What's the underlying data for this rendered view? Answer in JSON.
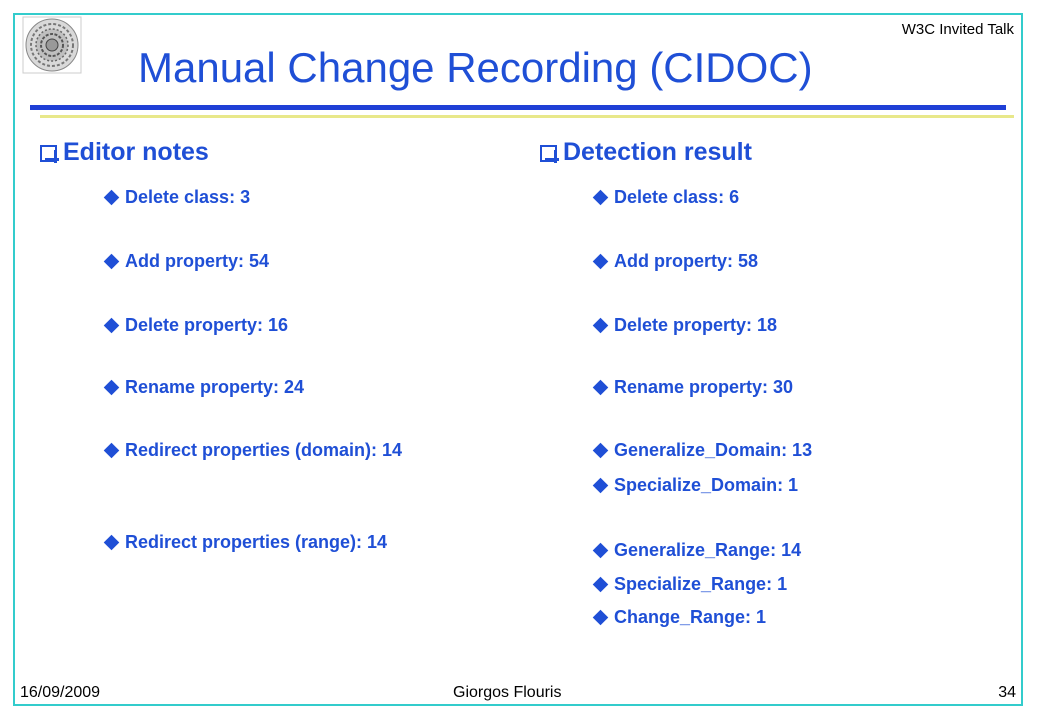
{
  "header": {
    "top_label": "W3C Invited Talk",
    "title": "Manual Change Recording (CIDOC)"
  },
  "left": {
    "heading": "Editor notes",
    "items": [
      {
        "label": "Delete class: 3"
      },
      {
        "label": "Add property: 54"
      },
      {
        "label": "Delete property: 16"
      },
      {
        "label": "Rename property: 24"
      },
      {
        "label": "Redirect properties (domain): 14"
      },
      {
        "label": "Redirect properties (range): 14"
      }
    ]
  },
  "right": {
    "heading": "Detection result",
    "items": [
      {
        "label": "Delete class: 6"
      },
      {
        "label": "Add property: 58"
      },
      {
        "label": "Delete property: 18"
      },
      {
        "label": "Rename property: 30"
      },
      {
        "label": "Generalize_Domain: 13"
      },
      {
        "label": "Specialize_Domain: 1"
      },
      {
        "label": "Generalize_Range: 14"
      },
      {
        "label": "Specialize_Range: 1"
      },
      {
        "label": "Change_Range: 1"
      }
    ]
  },
  "footer": {
    "date": "16/09/2009",
    "author": "Giorgos Flouris",
    "page": "34"
  },
  "colors": {
    "title": "#1f4fd6",
    "frame": "#33cccc",
    "rule": "#1f3fd6",
    "rule_secondary": "#e8e88a"
  },
  "icons": {
    "heading_bullet": "checkbox-icon",
    "item_bullet": "diamond-icon",
    "logo": "logo-icon"
  }
}
